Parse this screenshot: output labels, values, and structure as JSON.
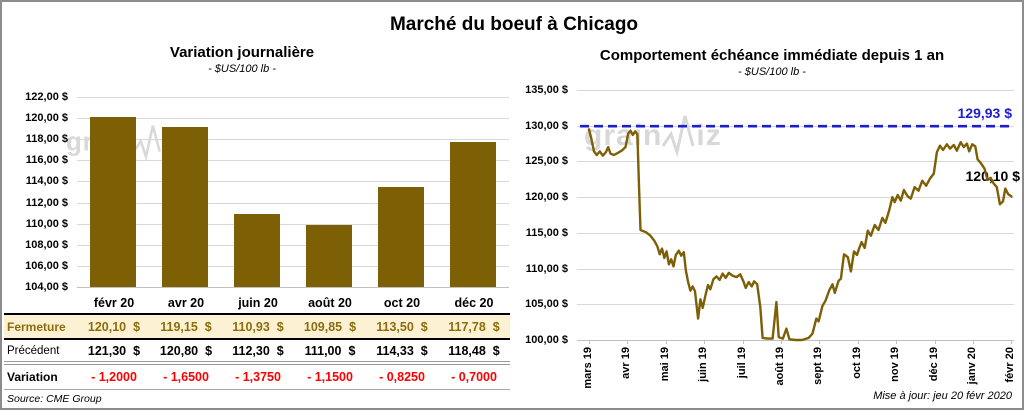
{
  "page_title": "Marché du boeuf à Chicago",
  "source_note": "Source: CME Group",
  "updated_note": "Mise à jour: jeu 20 févr 2020",
  "watermark": {
    "prefix": "grain",
    "suffix": "iz"
  },
  "colors": {
    "series_gold": "#7d5f06",
    "fermeture_gold": "#8c6d0e",
    "variation_red": "#fe0000",
    "reference_blue": "#1e1ecd",
    "fermeture_row_bg": "#fcf2d3",
    "gridline_gray": "#d8d8d8"
  },
  "left_chart": {
    "title": "Variation journalière",
    "subtitle": "- $US/100 lb -",
    "y_tick_labels": [
      "122,00 $",
      "120,00 $",
      "118,00 $",
      "116,00 $",
      "114,00 $",
      "112,00 $",
      "110,00 $",
      "108,00 $",
      "106,00 $",
      "104,00 $"
    ]
  },
  "right_chart": {
    "title": "Comportement échéance immédiate depuis 1 an",
    "subtitle": "- $US/100 lb -",
    "y_tick_labels": [
      "135,00 $",
      "130,00 $",
      "125,00 $",
      "120,00 $",
      "115,00 $",
      "110,00 $",
      "105,00 $",
      "100,00 $"
    ],
    "x_tick_labels": [
      "mars 19",
      "avr 19",
      "mai 19",
      "juin 19",
      "juil 19",
      "août 19",
      "sept 19",
      "oct 19",
      "nov 19",
      "déc 19",
      "janv 20",
      "févr 20"
    ],
    "reference_line": {
      "value": 129.93,
      "label": "129,93 $"
    },
    "last_point_label": "120,10 $"
  },
  "table": {
    "columns": [
      "févr 20",
      "avr 20",
      "juin 20",
      "août 20",
      "oct 20",
      "déc 20"
    ],
    "rows": [
      {
        "label": "Fermeture",
        "style": "fermeture",
        "suffix": "$",
        "values": [
          "120,10",
          "119,15",
          "110,93",
          "109,85",
          "113,50",
          "117,78"
        ]
      },
      {
        "label": "Précédent",
        "style": "precedent",
        "suffix": "$",
        "values": [
          "121,30",
          "120,80",
          "112,30",
          "111,00",
          "114,33",
          "118,48"
        ]
      },
      {
        "label": "Variation",
        "style": "variation",
        "suffix": "",
        "values": [
          "- 1,2000",
          "- 1,6500",
          "- 1,3750",
          "- 1,1500",
          "- 0,8250",
          "- 0,7000"
        ]
      }
    ]
  },
  "chart_data": [
    {
      "type": "bar",
      "title": "Variation journalière",
      "subtitle": "- $US/100 lb -",
      "categories": [
        "févr 20",
        "avr 20",
        "juin 20",
        "août 20",
        "oct 20",
        "déc 20"
      ],
      "values": [
        120.1,
        119.15,
        110.93,
        109.85,
        113.5,
        117.78
      ],
      "xlabel": "",
      "ylabel": "$US/100 lb",
      "ylim": [
        104,
        122
      ],
      "y_step": 2,
      "grid": true,
      "bar_color": "#7d5f06"
    },
    {
      "type": "line",
      "title": "Comportement échéance immédiate depuis 1 an",
      "subtitle": "- $US/100 lb -",
      "x_unit": "months after mars 19 tick",
      "x_categories": [
        "mars 19",
        "avr 19",
        "mai 19",
        "juin 19",
        "juil 19",
        "août 19",
        "sept 19",
        "oct 19",
        "nov 19",
        "déc 19",
        "janv 20",
        "févr 20"
      ],
      "ylim": [
        100,
        135
      ],
      "y_step": 5,
      "grid": true,
      "line_color": "#7d5f06",
      "reference_value": 129.93,
      "last_value": 120.1,
      "points": [
        [
          0,
          129.5
        ],
        [
          0.06,
          128.2
        ],
        [
          0.13,
          126.4
        ],
        [
          0.2,
          125.9
        ],
        [
          0.28,
          126.4
        ],
        [
          0.36,
          125.8
        ],
        [
          0.44,
          126.3
        ],
        [
          0.5,
          127.0
        ],
        [
          0.56,
          126.1
        ],
        [
          0.65,
          125.9
        ],
        [
          0.75,
          126.2
        ],
        [
          0.85,
          126.5
        ],
        [
          0.95,
          127.0
        ],
        [
          1.02,
          128.9
        ],
        [
          1.08,
          129.3
        ],
        [
          1.14,
          128.7
        ],
        [
          1.2,
          129.2
        ],
        [
          1.26,
          128.8
        ],
        [
          1.3,
          122.0
        ],
        [
          1.34,
          115.4
        ],
        [
          1.48,
          115.1
        ],
        [
          1.6,
          114.6
        ],
        [
          1.7,
          113.9
        ],
        [
          1.78,
          113.1
        ],
        [
          1.84,
          112.0
        ],
        [
          1.9,
          112.8
        ],
        [
          1.96,
          111.5
        ],
        [
          2.02,
          112.4
        ],
        [
          2.08,
          110.6
        ],
        [
          2.14,
          111.3
        ],
        [
          2.2,
          110.3
        ],
        [
          2.26,
          111.9
        ],
        [
          2.34,
          112.5
        ],
        [
          2.4,
          111.8
        ],
        [
          2.47,
          112.3
        ],
        [
          2.52,
          109.8
        ],
        [
          2.58,
          108.1
        ],
        [
          2.64,
          106.9
        ],
        [
          2.7,
          107.5
        ],
        [
          2.76,
          106.8
        ],
        [
          2.84,
          103.0
        ],
        [
          2.9,
          105.7
        ],
        [
          2.96,
          104.5
        ],
        [
          3.04,
          106.4
        ],
        [
          3.1,
          107.7
        ],
        [
          3.16,
          107.1
        ],
        [
          3.24,
          108.5
        ],
        [
          3.32,
          108.9
        ],
        [
          3.4,
          108.4
        ],
        [
          3.48,
          109.3
        ],
        [
          3.56,
          108.7
        ],
        [
          3.64,
          109.4
        ],
        [
          3.74,
          109.0
        ],
        [
          3.84,
          108.8
        ],
        [
          3.94,
          109.2
        ],
        [
          4.02,
          108.2
        ],
        [
          4.08,
          107.3
        ],
        [
          4.16,
          108.1
        ],
        [
          4.24,
          107.5
        ],
        [
          4.3,
          108.2
        ],
        [
          4.38,
          107.8
        ],
        [
          4.46,
          104.6
        ],
        [
          4.52,
          100.3
        ],
        [
          4.65,
          100.2
        ],
        [
          4.78,
          100.2
        ],
        [
          4.88,
          105.3
        ],
        [
          4.94,
          100.4
        ],
        [
          5.05,
          100.2
        ],
        [
          5.14,
          101.6
        ],
        [
          5.22,
          100.1
        ],
        [
          5.38,
          100.0
        ],
        [
          5.55,
          100.0
        ],
        [
          5.72,
          100.3
        ],
        [
          5.82,
          100.9
        ],
        [
          5.92,
          103.0
        ],
        [
          5.98,
          102.6
        ],
        [
          6.08,
          104.8
        ],
        [
          6.16,
          105.5
        ],
        [
          6.26,
          107.0
        ],
        [
          6.34,
          107.8
        ],
        [
          6.4,
          106.6
        ],
        [
          6.5,
          108.3
        ],
        [
          6.56,
          108.6
        ],
        [
          6.64,
          112.0
        ],
        [
          6.74,
          111.6
        ],
        [
          6.82,
          109.6
        ],
        [
          6.9,
          112.4
        ],
        [
          6.98,
          111.9
        ],
        [
          7.04,
          112.9
        ],
        [
          7.1,
          113.7
        ],
        [
          7.18,
          112.9
        ],
        [
          7.26,
          115.3
        ],
        [
          7.34,
          114.6
        ],
        [
          7.44,
          116.1
        ],
        [
          7.54,
          115.4
        ],
        [
          7.64,
          117.1
        ],
        [
          7.72,
          116.4
        ],
        [
          7.82,
          118.2
        ],
        [
          7.9,
          120.0
        ],
        [
          7.96,
          119.3
        ],
        [
          8.04,
          120.3
        ],
        [
          8.12,
          119.5
        ],
        [
          8.2,
          121.0
        ],
        [
          8.3,
          120.1
        ],
        [
          8.38,
          119.8
        ],
        [
          8.48,
          121.4
        ],
        [
          8.58,
          120.9
        ],
        [
          8.68,
          122.3
        ],
        [
          8.78,
          121.6
        ],
        [
          8.88,
          122.6
        ],
        [
          8.98,
          123.3
        ],
        [
          9.06,
          126.3
        ],
        [
          9.14,
          127.2
        ],
        [
          9.22,
          126.6
        ],
        [
          9.32,
          127.4
        ],
        [
          9.4,
          126.8
        ],
        [
          9.5,
          127.3
        ],
        [
          9.58,
          126.5
        ],
        [
          9.68,
          127.7
        ],
        [
          9.76,
          127.0
        ],
        [
          9.84,
          127.5
        ],
        [
          9.9,
          126.4
        ],
        [
          9.98,
          127.4
        ],
        [
          10.06,
          127.1
        ],
        [
          10.12,
          125.3
        ],
        [
          10.2,
          124.8
        ],
        [
          10.3,
          124.0
        ],
        [
          10.38,
          122.4
        ],
        [
          10.46,
          122.7
        ],
        [
          10.54,
          121.9
        ],
        [
          10.62,
          121.4
        ],
        [
          10.7,
          119.0
        ],
        [
          10.78,
          119.4
        ],
        [
          10.84,
          121.2
        ],
        [
          10.92,
          120.4
        ],
        [
          11.0,
          120.1
        ]
      ]
    }
  ]
}
